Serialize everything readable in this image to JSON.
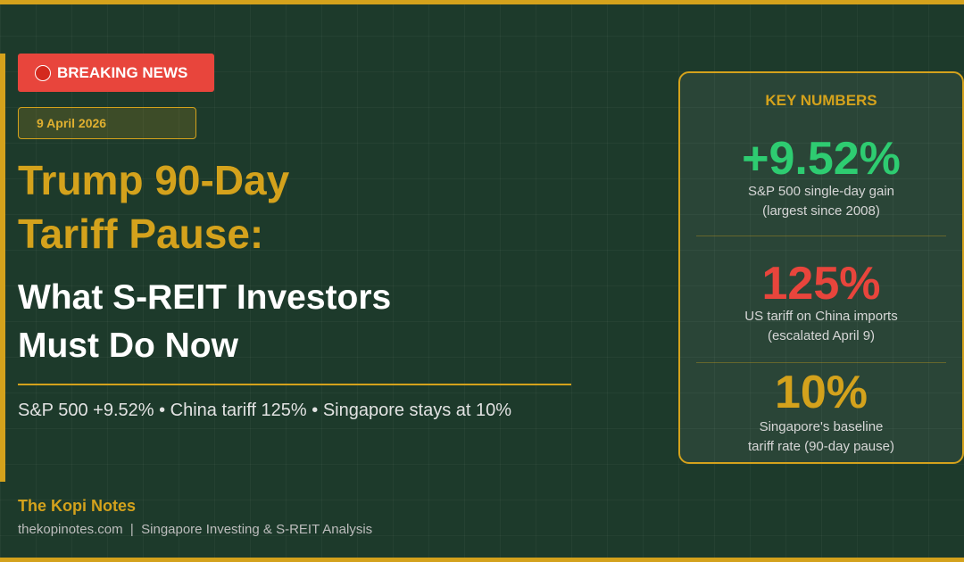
{
  "badge": "BREAKING NEWS",
  "date": "9 April 2026",
  "title": [
    "Trump 90-Day",
    "Tariff Pause:"
  ],
  "subtitle": [
    "What S-REIT Investors",
    "Must Do Now"
  ],
  "summary": "S&P 500 +9.52% • China tariff 125% • Singapore stays at 10%",
  "key_numbers": {
    "heading": "KEY NUMBERS",
    "items": [
      {
        "value": "+9.52%",
        "description": [
          "S&P 500 single-day gain",
          "(largest since 2008)"
        ]
      },
      {
        "value": "125%",
        "description": [
          "US tariff on China imports",
          "(escalated April 9)"
        ]
      },
      {
        "value": "10%",
        "description": [
          "Singapore's baseline",
          "tariff rate (90-day pause)"
        ]
      }
    ]
  },
  "footer": {
    "brand": "The Kopi Notes",
    "site": "thekopinotes.com  |  Singapore Investing & S-REIT Analysis"
  }
}
